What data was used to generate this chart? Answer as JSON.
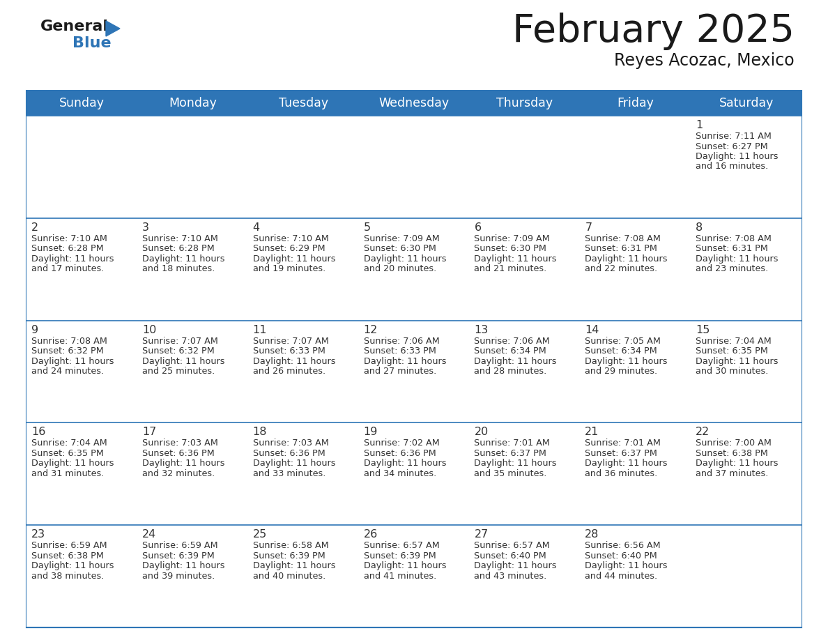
{
  "title": "February 2025",
  "subtitle": "Reyes Acozac, Mexico",
  "days_of_week": [
    "Sunday",
    "Monday",
    "Tuesday",
    "Wednesday",
    "Thursday",
    "Friday",
    "Saturday"
  ],
  "header_bg": "#2E75B6",
  "header_text": "#FFFFFF",
  "border_color": "#2E75B6",
  "title_color": "#1A1A1A",
  "text_color": "#333333",
  "calendar": [
    [
      null,
      null,
      null,
      null,
      null,
      null,
      {
        "day": 1,
        "sunrise": "7:11 AM",
        "sunset": "6:27 PM",
        "daylight": "11 hours\nand 16 minutes."
      }
    ],
    [
      {
        "day": 2,
        "sunrise": "7:10 AM",
        "sunset": "6:28 PM",
        "daylight": "11 hours\nand 17 minutes."
      },
      {
        "day": 3,
        "sunrise": "7:10 AM",
        "sunset": "6:28 PM",
        "daylight": "11 hours\nand 18 minutes."
      },
      {
        "day": 4,
        "sunrise": "7:10 AM",
        "sunset": "6:29 PM",
        "daylight": "11 hours\nand 19 minutes."
      },
      {
        "day": 5,
        "sunrise": "7:09 AM",
        "sunset": "6:30 PM",
        "daylight": "11 hours\nand 20 minutes."
      },
      {
        "day": 6,
        "sunrise": "7:09 AM",
        "sunset": "6:30 PM",
        "daylight": "11 hours\nand 21 minutes."
      },
      {
        "day": 7,
        "sunrise": "7:08 AM",
        "sunset": "6:31 PM",
        "daylight": "11 hours\nand 22 minutes."
      },
      {
        "day": 8,
        "sunrise": "7:08 AM",
        "sunset": "6:31 PM",
        "daylight": "11 hours\nand 23 minutes."
      }
    ],
    [
      {
        "day": 9,
        "sunrise": "7:08 AM",
        "sunset": "6:32 PM",
        "daylight": "11 hours\nand 24 minutes."
      },
      {
        "day": 10,
        "sunrise": "7:07 AM",
        "sunset": "6:32 PM",
        "daylight": "11 hours\nand 25 minutes."
      },
      {
        "day": 11,
        "sunrise": "7:07 AM",
        "sunset": "6:33 PM",
        "daylight": "11 hours\nand 26 minutes."
      },
      {
        "day": 12,
        "sunrise": "7:06 AM",
        "sunset": "6:33 PM",
        "daylight": "11 hours\nand 27 minutes."
      },
      {
        "day": 13,
        "sunrise": "7:06 AM",
        "sunset": "6:34 PM",
        "daylight": "11 hours\nand 28 minutes."
      },
      {
        "day": 14,
        "sunrise": "7:05 AM",
        "sunset": "6:34 PM",
        "daylight": "11 hours\nand 29 minutes."
      },
      {
        "day": 15,
        "sunrise": "7:04 AM",
        "sunset": "6:35 PM",
        "daylight": "11 hours\nand 30 minutes."
      }
    ],
    [
      {
        "day": 16,
        "sunrise": "7:04 AM",
        "sunset": "6:35 PM",
        "daylight": "11 hours\nand 31 minutes."
      },
      {
        "day": 17,
        "sunrise": "7:03 AM",
        "sunset": "6:36 PM",
        "daylight": "11 hours\nand 32 minutes."
      },
      {
        "day": 18,
        "sunrise": "7:03 AM",
        "sunset": "6:36 PM",
        "daylight": "11 hours\nand 33 minutes."
      },
      {
        "day": 19,
        "sunrise": "7:02 AM",
        "sunset": "6:36 PM",
        "daylight": "11 hours\nand 34 minutes."
      },
      {
        "day": 20,
        "sunrise": "7:01 AM",
        "sunset": "6:37 PM",
        "daylight": "11 hours\nand 35 minutes."
      },
      {
        "day": 21,
        "sunrise": "7:01 AM",
        "sunset": "6:37 PM",
        "daylight": "11 hours\nand 36 minutes."
      },
      {
        "day": 22,
        "sunrise": "7:00 AM",
        "sunset": "6:38 PM",
        "daylight": "11 hours\nand 37 minutes."
      }
    ],
    [
      {
        "day": 23,
        "sunrise": "6:59 AM",
        "sunset": "6:38 PM",
        "daylight": "11 hours\nand 38 minutes."
      },
      {
        "day": 24,
        "sunrise": "6:59 AM",
        "sunset": "6:39 PM",
        "daylight": "11 hours\nand 39 minutes."
      },
      {
        "day": 25,
        "sunrise": "6:58 AM",
        "sunset": "6:39 PM",
        "daylight": "11 hours\nand 40 minutes."
      },
      {
        "day": 26,
        "sunrise": "6:57 AM",
        "sunset": "6:39 PM",
        "daylight": "11 hours\nand 41 minutes."
      },
      {
        "day": 27,
        "sunrise": "6:57 AM",
        "sunset": "6:40 PM",
        "daylight": "11 hours\nand 43 minutes."
      },
      {
        "day": 28,
        "sunrise": "6:56 AM",
        "sunset": "6:40 PM",
        "daylight": "11 hours\nand 44 minutes."
      },
      null
    ]
  ],
  "fig_width": 11.88,
  "fig_height": 9.18,
  "dpi": 100
}
